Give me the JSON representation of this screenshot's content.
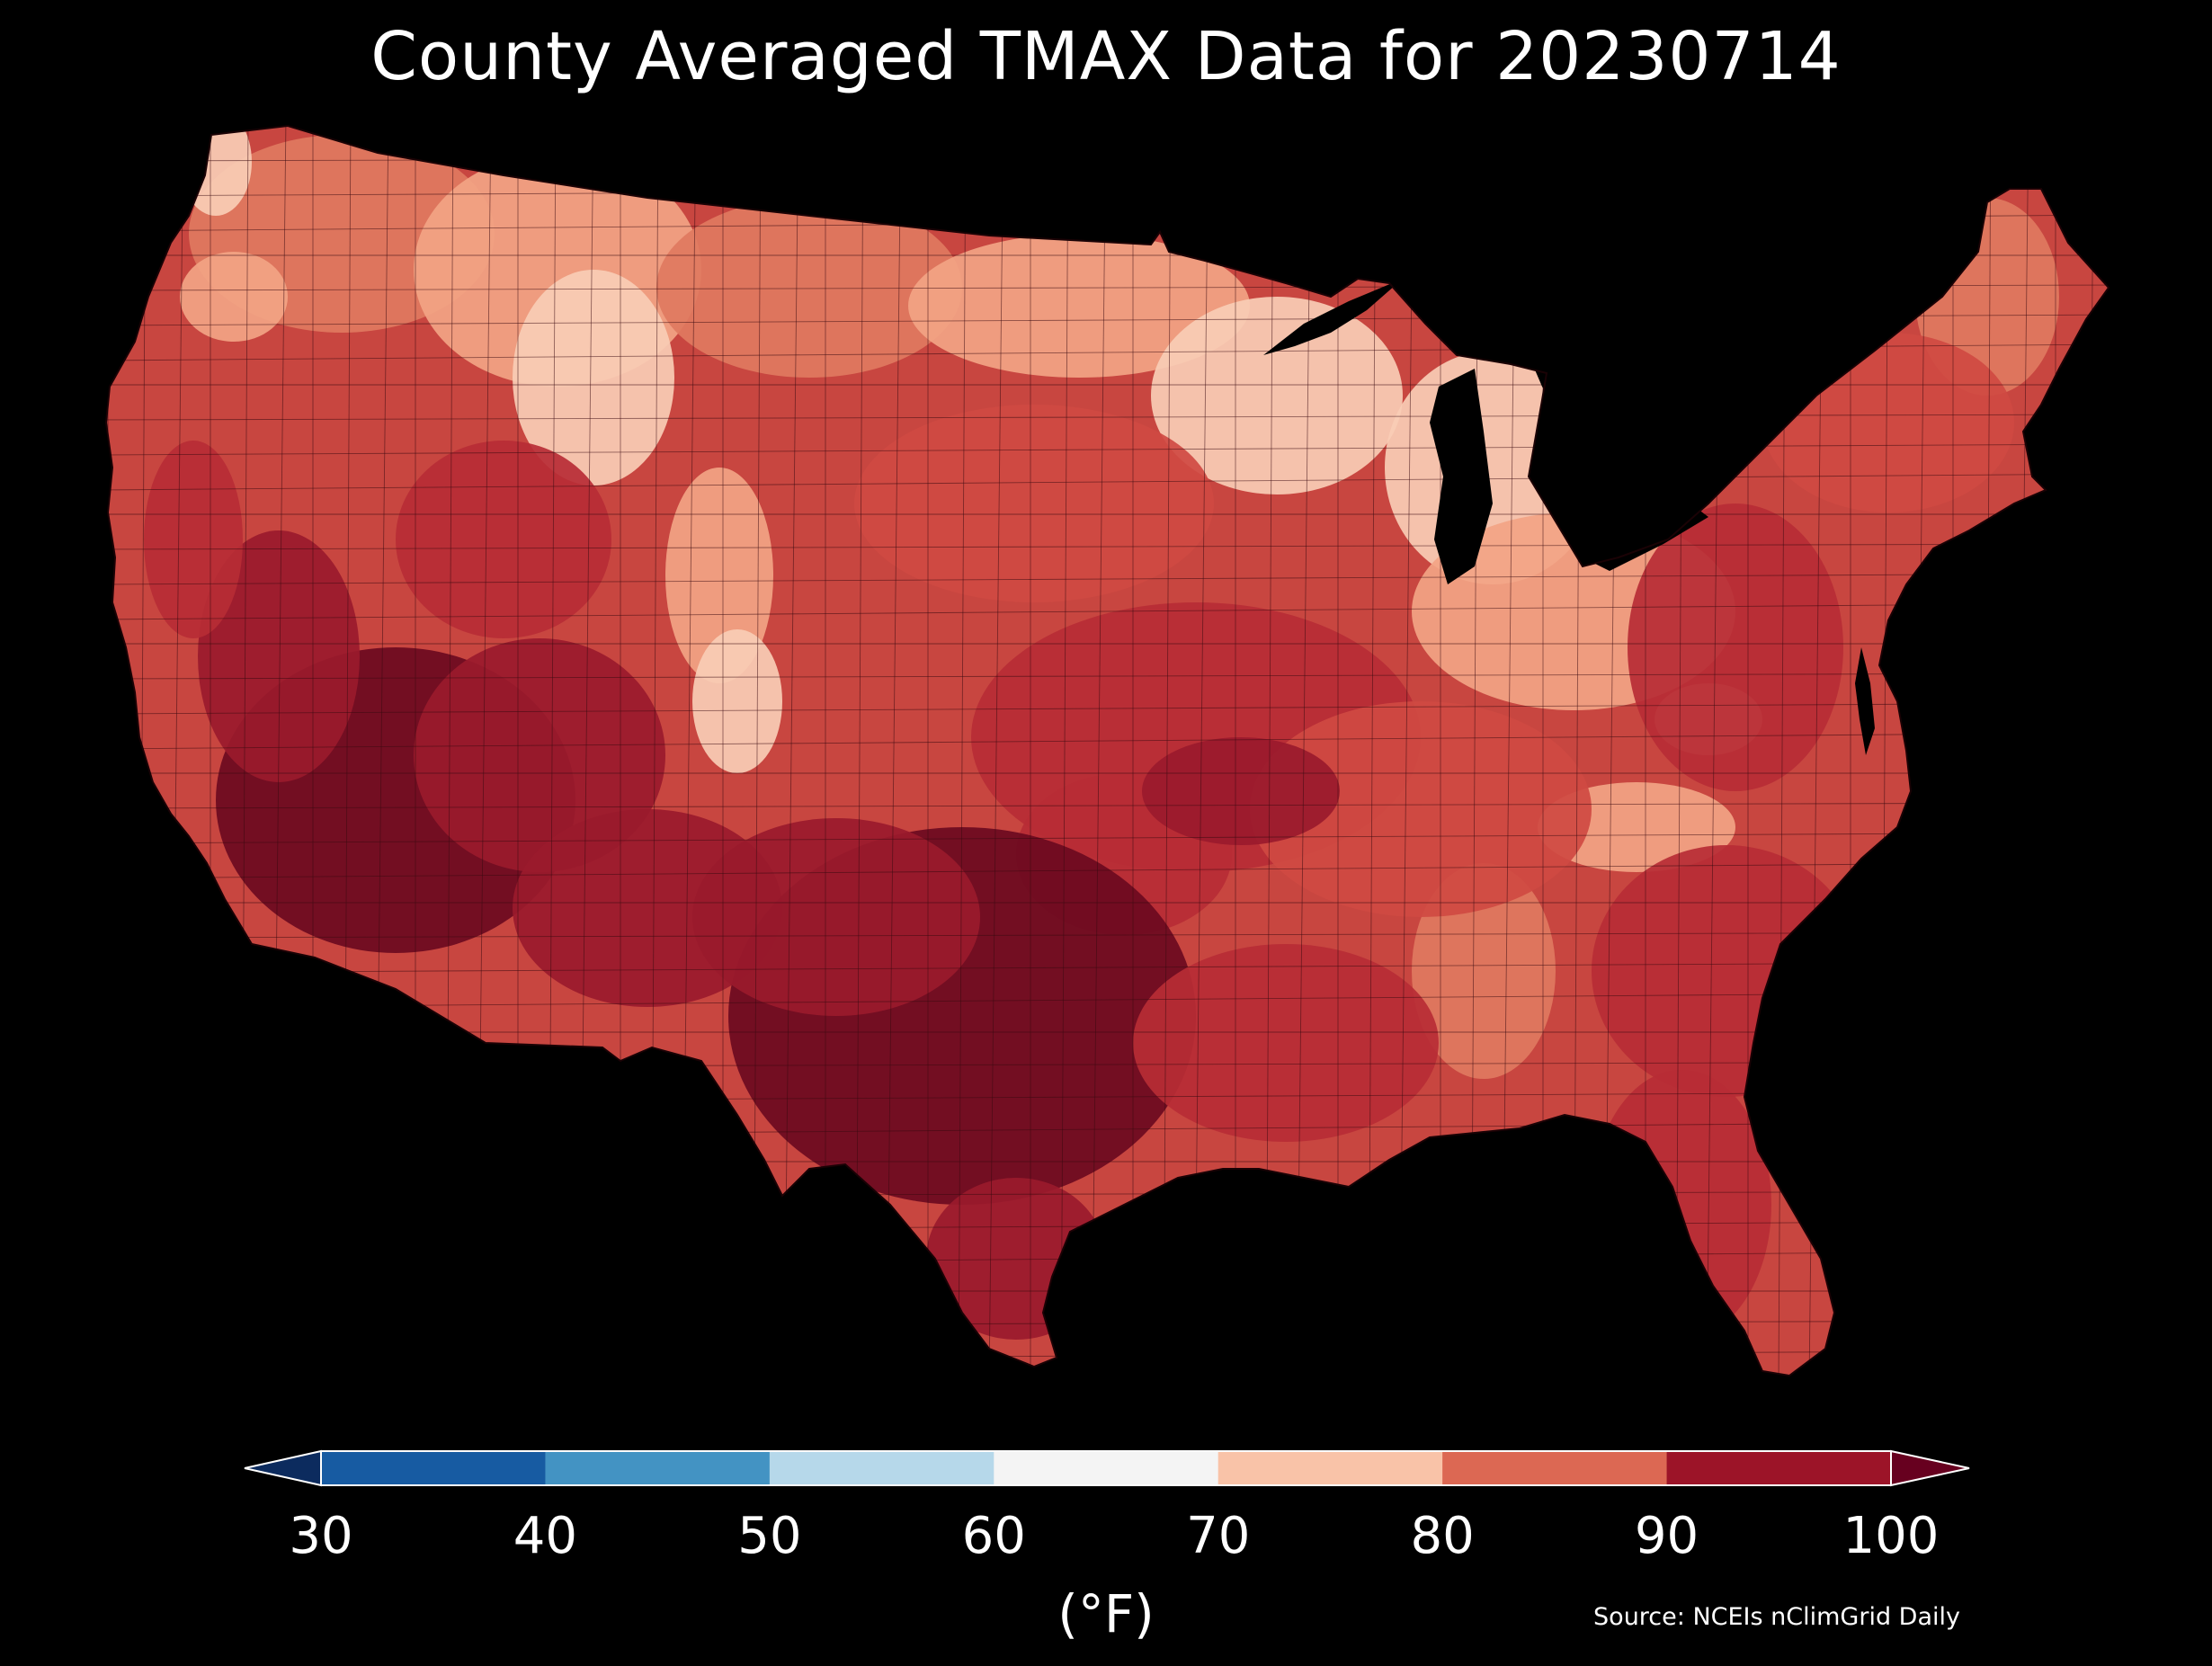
{
  "title": "County Averaged TMAX Data for 20230714",
  "colorbar": {
    "unit_label": "(°F)",
    "ticks": [
      "30",
      "40",
      "50",
      "60",
      "70",
      "80",
      "90",
      "100"
    ],
    "bins": [
      {
        "min": 30,
        "max": 40,
        "color": "#175ba2"
      },
      {
        "min": 40,
        "max": 50,
        "color": "#4393c3"
      },
      {
        "min": 50,
        "max": 60,
        "color": "#b6d8ea"
      },
      {
        "min": 60,
        "max": 70,
        "color": "#f4f4f4"
      },
      {
        "min": 70,
        "max": 80,
        "color": "#f9c3a8"
      },
      {
        "min": 80,
        "max": 90,
        "color": "#dc6853"
      },
      {
        "min": 90,
        "max": 100,
        "color": "#9c1428"
      }
    ],
    "under_color": "#0c2b5e",
    "over_color": "#67001f"
  },
  "source": "Source: NCEIs nClimGrid Daily",
  "map": {
    "region": "Contiguous United States",
    "variable": "TMAX",
    "date": "20230714",
    "aggregation": "county average",
    "palette": {
      "over_100": "#6b0a1f",
      "90_100": "#9a1a2c",
      "85_90": "#b72c35",
      "80_85": "#cf4a42",
      "75_80": "#e07a5f",
      "70_75": "#f2a484",
      "65_70": "#f8cdb5",
      "water": "#000000",
      "county_border": "#3a0a10"
    }
  }
}
